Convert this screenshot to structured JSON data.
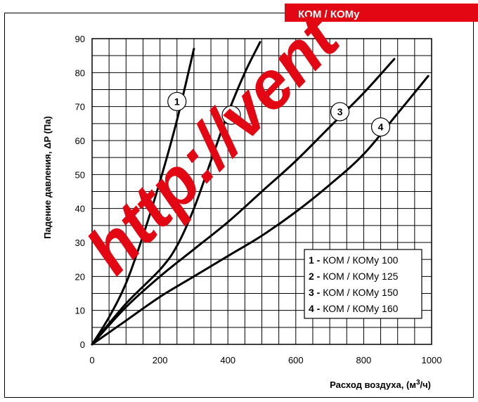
{
  "header": {
    "title": "КОМ / КОМу"
  },
  "watermark": "http://vent",
  "colors": {
    "brand_red": "#e30613",
    "line": "#000000",
    "grid": "#000000",
    "frame": "#000000"
  },
  "chart_data": {
    "type": "line",
    "title": "",
    "xlabel": "Расход воздуха, (м³/ч)",
    "ylabel": "Падение давления, ΔP (Па)",
    "xlim": [
      0,
      1000
    ],
    "ylim": [
      0,
      90
    ],
    "x_ticks": [
      "0",
      "200",
      "400",
      "600",
      "800",
      "1000"
    ],
    "y_ticks": [
      "0",
      "10",
      "20",
      "30",
      "40",
      "50",
      "60",
      "70",
      "80",
      "90"
    ],
    "x_minor_step": 50,
    "y_minor_step": 5,
    "grid": true,
    "legend_position": "bottom-right",
    "series": [
      {
        "name": "КОМ / КОМу 100",
        "label": "1",
        "legend_num": "1 -",
        "legend_text": "КОМ / КОМу 100",
        "x": [
          0,
          50,
          100,
          150,
          200,
          250,
          300
        ],
        "y": [
          0,
          8,
          18,
          32,
          48,
          66,
          87
        ]
      },
      {
        "name": "КОМ / КОМу 125",
        "label": "2",
        "legend_num": "2 -",
        "legend_text": "КОМ / КОМу 125",
        "x": [
          0,
          100,
          200,
          250,
          300,
          350,
          400,
          450,
          495
        ],
        "y": [
          0,
          12,
          22,
          29,
          40,
          54,
          68,
          80,
          89
        ]
      },
      {
        "name": "КОМ / КОМу 150",
        "label": "3",
        "legend_num": "3 -",
        "legend_text": "КОМ / КОМу 150",
        "x": [
          0,
          100,
          200,
          300,
          400,
          500,
          600,
          700,
          800,
          890
        ],
        "y": [
          0,
          11,
          20,
          28,
          36,
          45,
          54,
          64,
          74,
          84
        ]
      },
      {
        "name": "КОМ / КОМу 160",
        "label": "4",
        "legend_num": "4 -",
        "legend_text": "КОМ / КОМу 160",
        "x": [
          0,
          100,
          200,
          300,
          400,
          500,
          600,
          700,
          800,
          900,
          990
        ],
        "y": [
          0,
          7,
          14,
          20,
          26,
          32,
          39,
          47,
          56,
          68,
          79
        ]
      }
    ]
  }
}
